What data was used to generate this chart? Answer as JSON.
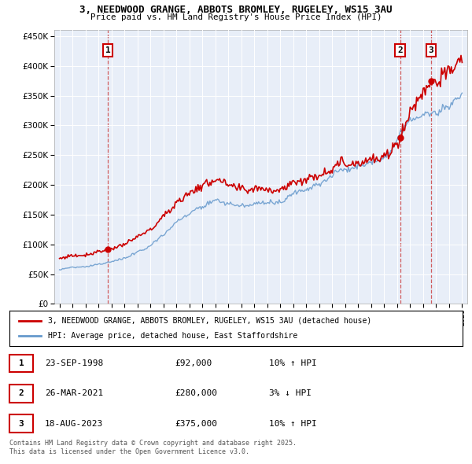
{
  "title": "3, NEEDWOOD GRANGE, ABBOTS BROMLEY, RUGELEY, WS15 3AU",
  "subtitle": "Price paid vs. HM Land Registry's House Price Index (HPI)",
  "legend_line1": "3, NEEDWOOD GRANGE, ABBOTS BROMLEY, RUGELEY, WS15 3AU (detached house)",
  "legend_line2": "HPI: Average price, detached house, East Staffordshire",
  "footer_line1": "Contains HM Land Registry data © Crown copyright and database right 2025.",
  "footer_line2": "This data is licensed under the Open Government Licence v3.0.",
  "transactions": [
    {
      "num": 1,
      "date": "23-SEP-1998",
      "price": "£92,000",
      "hpi": "10% ↑ HPI",
      "year": 1998.73,
      "price_val": 92000
    },
    {
      "num": 2,
      "date": "26-MAR-2021",
      "price": "£280,000",
      "hpi": "3% ↓ HPI",
      "year": 2021.23,
      "price_val": 280000
    },
    {
      "num": 3,
      "date": "18-AUG-2023",
      "price": "£375,000",
      "hpi": "10% ↑ HPI",
      "year": 2023.62,
      "price_val": 375000
    }
  ],
  "red_color": "#cc0000",
  "blue_color": "#6699cc",
  "chart_bg_color": "#e8eef8",
  "background_color": "#ffffff",
  "grid_color": "#ffffff",
  "vline_color": "#cc4444",
  "ylim": [
    0,
    460000
  ],
  "yticks": [
    0,
    50000,
    100000,
    150000,
    200000,
    250000,
    300000,
    350000,
    400000,
    450000
  ],
  "xlim_start": 1994.6,
  "xlim_end": 2026.4
}
